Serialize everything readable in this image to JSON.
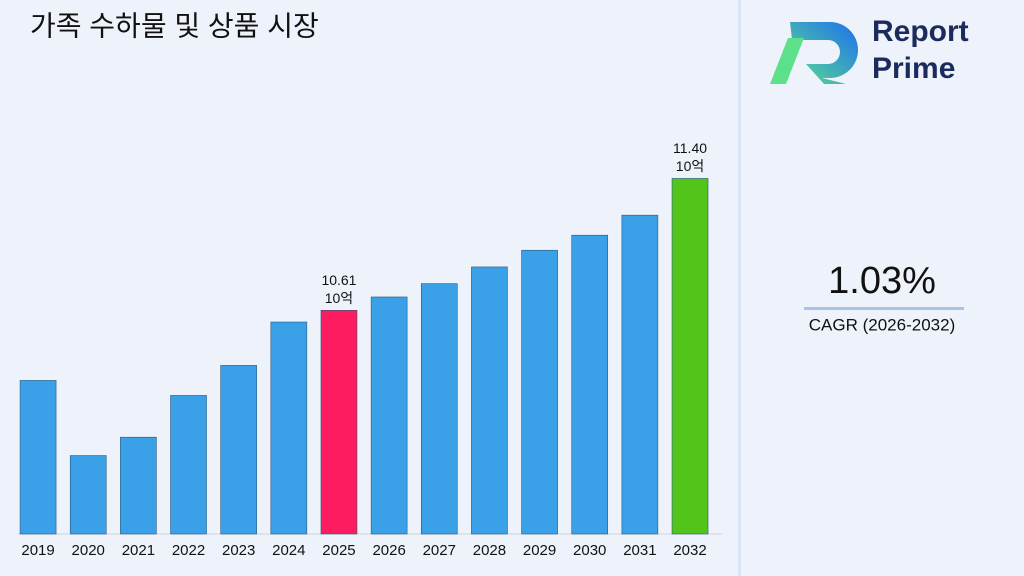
{
  "chart_data": {
    "type": "bar",
    "title": "가족 수하물 및 상품 시장",
    "categories": [
      "2019",
      "2020",
      "2021",
      "2022",
      "2023",
      "2024",
      "2025",
      "2026",
      "2027",
      "2028",
      "2029",
      "2030",
      "2031",
      "2032"
    ],
    "values": [
      10.19,
      9.74,
      9.85,
      10.1,
      10.28,
      10.54,
      10.61,
      10.69,
      10.77,
      10.87,
      10.97,
      11.06,
      11.18,
      11.4
    ],
    "value_labels": [
      null,
      null,
      null,
      null,
      null,
      null,
      "10.61",
      null,
      null,
      null,
      null,
      null,
      null,
      "11.40"
    ],
    "unit_label": "10억",
    "colors": [
      "#3aa0e8",
      "#3aa0e8",
      "#3aa0e8",
      "#3aa0e8",
      "#3aa0e8",
      "#3aa0e8",
      "#fc1c5f",
      "#3aa0e8",
      "#3aa0e8",
      "#3aa0e8",
      "#3aa0e8",
      "#3aa0e8",
      "#3aa0e8",
      "#52c41a"
    ],
    "ylim": [
      9.27,
      11.9
    ]
  },
  "cagr": {
    "value": "1.03%",
    "label": "CAGR (2026-2032)"
  },
  "logo": {
    "line1": "Report",
    "line2": "Prime"
  }
}
